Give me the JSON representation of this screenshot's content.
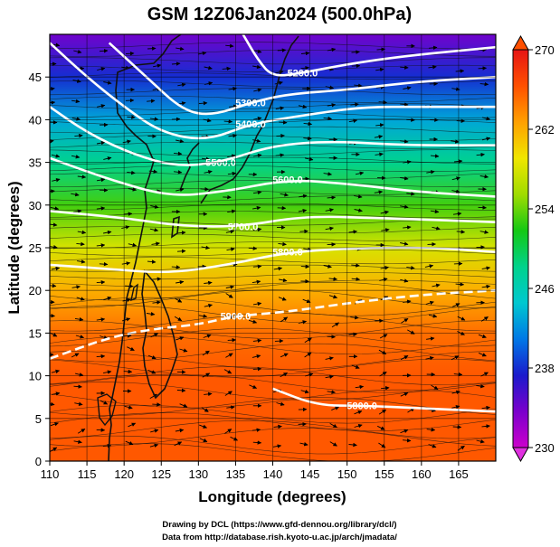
{
  "title": "GSM 12Z06Jan2024 (500.0hPa)",
  "credits": {
    "line1": "Drawing by DCL (https://www.gfd-dennou.org/library/dcl/)",
    "line2": "Data from http://database.rish.kyoto-u.ac.jp/arch/jmadata/"
  },
  "chart_data": {
    "type": "heatmap",
    "title": "GSM 12Z06Jan2024 (500.0hPa)",
    "xlabel": "Longitude (degrees)",
    "ylabel": "Latitude  (degrees)",
    "xlim": [
      110,
      170
    ],
    "ylim": [
      0,
      50
    ],
    "x_ticks": [
      "110",
      "115",
      "120",
      "125",
      "130",
      "135",
      "140",
      "145",
      "150",
      "155",
      "160",
      "165"
    ],
    "y_ticks": [
      "0",
      "5",
      "10",
      "15",
      "20",
      "25",
      "30",
      "35",
      "40",
      "45"
    ],
    "grid": true,
    "colorbar": {
      "range": [
        230,
        270
      ],
      "labels": [
        "230",
        "238",
        "246",
        "254",
        "262",
        "270"
      ],
      "placement": "right",
      "colors": [
        "#cc00cc",
        "#7a00cc",
        "#1a1acc",
        "#0078e6",
        "#00c8d0",
        "#00d28c",
        "#14c814",
        "#a0dc00",
        "#f0e600",
        "#ffa000",
        "#ff5000",
        "#e61414"
      ]
    },
    "temperature_field": {
      "latitudes": [
        50,
        45,
        40,
        35,
        30,
        25,
        20,
        15,
        10,
        5,
        0
      ],
      "values": [
        234,
        238,
        243,
        248,
        253,
        258,
        262,
        265,
        266,
        266,
        266
      ]
    },
    "contour_labels": [
      "5200.0",
      "5300.0",
      "5400.0",
      "5500.0",
      "5600.0",
      "5700.0",
      "5800.0",
      "5900.0",
      "5800.0"
    ],
    "contours": [
      {
        "label": "5200.0",
        "points": [
          [
            136,
            50
          ],
          [
            138,
            47
          ],
          [
            140,
            45
          ],
          [
            144,
            45.5
          ],
          [
            150,
            46.5
          ],
          [
            158,
            47.5
          ],
          [
            170,
            48.5
          ]
        ]
      },
      {
        "label": "5300.0",
        "points": [
          [
            118,
            49
          ],
          [
            123,
            45
          ],
          [
            128,
            41
          ],
          [
            132,
            40.5
          ],
          [
            137,
            42
          ],
          [
            142,
            43
          ],
          [
            150,
            43.5
          ],
          [
            160,
            44.5
          ],
          [
            170,
            45
          ]
        ]
      },
      {
        "label": "5400.0",
        "points": [
          [
            110,
            49
          ],
          [
            115,
            45
          ],
          [
            120,
            41.5
          ],
          [
            125,
            38.5
          ],
          [
            131,
            37.5
          ],
          [
            137,
            39.5
          ],
          [
            144,
            40.5
          ],
          [
            152,
            41.5
          ],
          [
            160,
            41.5
          ],
          [
            170,
            41.5
          ]
        ]
      },
      {
        "label": "5500.0",
        "points": [
          [
            110,
            41.5
          ],
          [
            115,
            38.5
          ],
          [
            121,
            36
          ],
          [
            127,
            34.5
          ],
          [
            133,
            35
          ],
          [
            140,
            37
          ],
          [
            148,
            37.5
          ],
          [
            158,
            37
          ],
          [
            170,
            37
          ]
        ]
      },
      {
        "label": "5600.0",
        "points": [
          [
            110,
            35.5
          ],
          [
            118,
            33
          ],
          [
            126,
            31
          ],
          [
            133,
            31.5
          ],
          [
            142,
            33
          ],
          [
            150,
            32.5
          ],
          [
            160,
            31.5
          ],
          [
            170,
            31
          ]
        ]
      },
      {
        "label": "5700.0",
        "points": [
          [
            110,
            29.3
          ],
          [
            120,
            28.5
          ],
          [
            128,
            27.5
          ],
          [
            136,
            27.5
          ],
          [
            144,
            28.7
          ],
          [
            154,
            28.5
          ],
          [
            170,
            28
          ]
        ]
      },
      {
        "label": "5800.0",
        "points": [
          [
            110,
            23
          ],
          [
            118,
            22.5
          ],
          [
            126,
            22
          ],
          [
            134,
            23
          ],
          [
            142,
            24.5
          ],
          [
            152,
            25
          ],
          [
            162,
            25
          ],
          [
            170,
            24.5
          ]
        ]
      },
      {
        "label": "5900.0",
        "points": [
          [
            110,
            12
          ],
          [
            118,
            14.5
          ],
          [
            124,
            15.5
          ],
          [
            130,
            16
          ],
          [
            135,
            17
          ],
          [
            142,
            17.5
          ],
          [
            150,
            18.5
          ],
          [
            160,
            19.5
          ],
          [
            170,
            20
          ]
        ]
      },
      {
        "label": "5800.0",
        "points": [
          [
            140,
            8.5
          ],
          [
            146,
            6.5
          ],
          [
            152,
            6.5
          ],
          [
            160,
            6.2
          ],
          [
            170,
            5.8
          ]
        ]
      }
    ],
    "wind": {
      "prevailing": "westerly"
    }
  }
}
